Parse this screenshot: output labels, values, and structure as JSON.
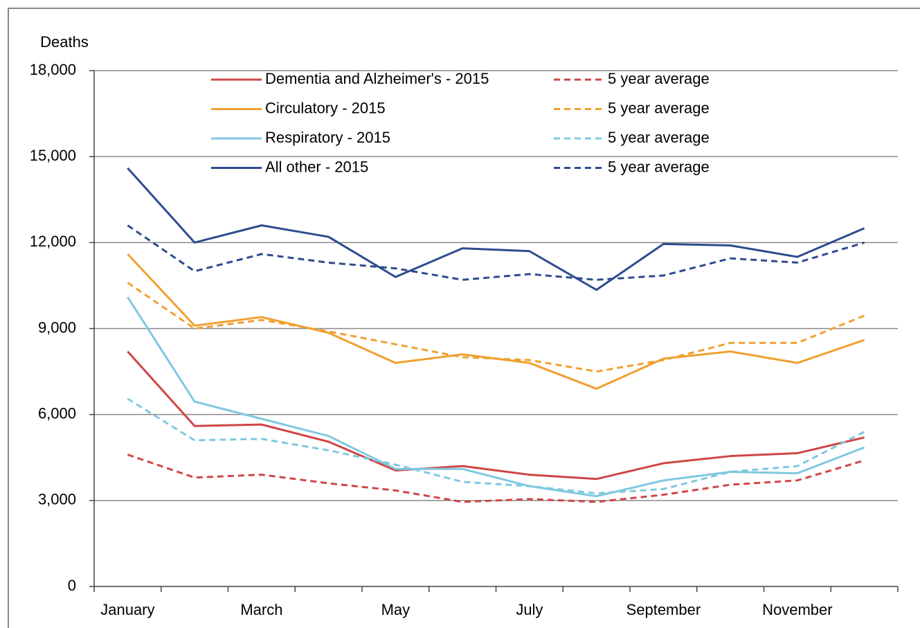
{
  "chart_data": {
    "type": "line",
    "y_label": "Deaths",
    "categories": [
      "January",
      null,
      "March",
      null,
      "May",
      null,
      "July",
      null,
      "September",
      null,
      "November",
      null
    ],
    "ylim": [
      0,
      18000
    ],
    "yticks": [
      0,
      {
        "value": 3000,
        "label": "3,000"
      },
      {
        "value": 6000,
        "label": "6,000"
      },
      {
        "value": 9000,
        "label": "9,000"
      },
      {
        "value": 12000,
        "label": "12,000"
      },
      {
        "value": 15000,
        "label": "15,000"
      },
      {
        "value": 18000,
        "label": "18,000"
      }
    ],
    "grid": true,
    "series": [
      {
        "name": "Dementia and Alzheimer's - 2015",
        "color": "#d04545",
        "dashed": false,
        "values": [
          8200,
          5600,
          5650,
          5050,
          4050,
          4200,
          3900,
          3750,
          4300,
          4550,
          4650,
          5200
        ]
      },
      {
        "name": "5 year average",
        "color": "#d04545",
        "dashed": true,
        "values": [
          4600,
          3800,
          3900,
          3600,
          3350,
          2950,
          3050,
          2950,
          3200,
          3550,
          3700,
          4400
        ]
      },
      {
        "name": "Circulatory - 2015",
        "color": "#f0a030",
        "dashed": false,
        "values": [
          11600,
          9100,
          9400,
          8850,
          7800,
          8100,
          7800,
          6900,
          7950,
          8200,
          7800,
          8600
        ]
      },
      {
        "name": "5 year average",
        "color": "#f0a030",
        "dashed": true,
        "values": [
          10600,
          9000,
          9300,
          8900,
          8450,
          8000,
          7900,
          7500,
          7900,
          8500,
          8500,
          9450
        ]
      },
      {
        "name": "Respiratory - 2015",
        "color": "#7ec8e0",
        "dashed": false,
        "values": [
          10100,
          6450,
          5850,
          5250,
          4100,
          4100,
          3500,
          3150,
          3700,
          4000,
          3950,
          4850
        ]
      },
      {
        "name": "5 year average",
        "color": "#7ec8e0",
        "dashed": true,
        "values": [
          6550,
          5100,
          5150,
          4750,
          4250,
          3650,
          3500,
          3250,
          3400,
          4000,
          4200,
          5400
        ]
      },
      {
        "name": "All other - 2015",
        "color": "#2e4b8f",
        "dashed": false,
        "values": [
          14600,
          12000,
          12600,
          12200,
          10800,
          11800,
          11700,
          10350,
          11950,
          11900,
          11500,
          12500
        ]
      },
      {
        "name": "5 year average",
        "color": "#2e4b8f",
        "dashed": true,
        "values": [
          12600,
          11000,
          11600,
          11300,
          11100,
          10700,
          10900,
          10700,
          10850,
          11450,
          11300,
          12000
        ]
      }
    ]
  }
}
